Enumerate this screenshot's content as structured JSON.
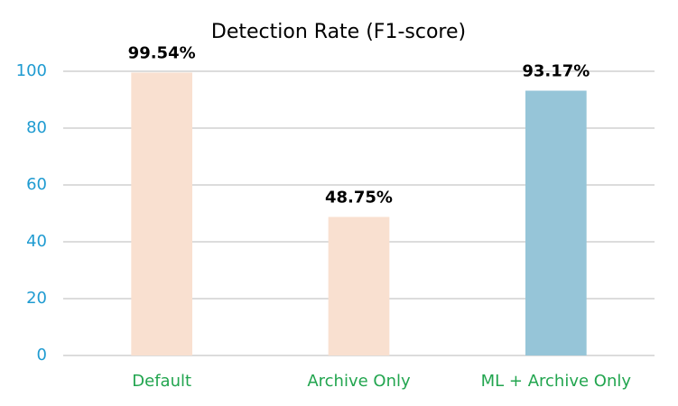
{
  "chart_data": {
    "type": "bar",
    "title": "Detection Rate (F1-score)",
    "categories": [
      "Default",
      "Archive Only",
      "ML + Archive Only"
    ],
    "values": [
      99.54,
      48.75,
      93.17
    ],
    "value_labels": [
      "99.54%",
      "48.75%",
      "93.17%"
    ],
    "colors": [
      "#f9e0d0",
      "#f9e0d0",
      "#96c5d8"
    ],
    "ylim": [
      0,
      100
    ],
    "yticks": [
      0,
      20,
      40,
      60,
      80,
      100
    ],
    "grid": true,
    "ytick_color": "#1f9bd1",
    "category_color": "#22a54f"
  }
}
